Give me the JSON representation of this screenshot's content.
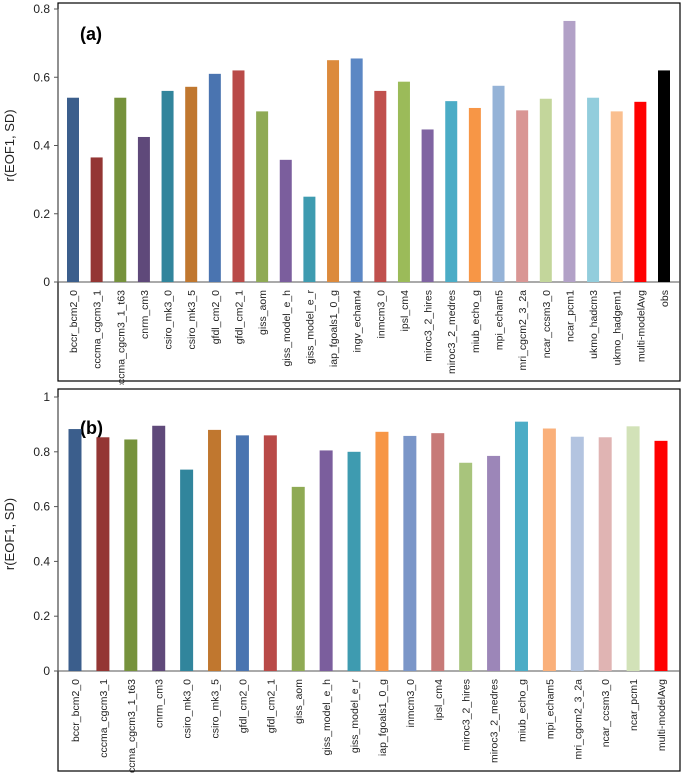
{
  "chart_data": [
    {
      "type": "bar",
      "panel_label": "(a)",
      "title": "",
      "xlabel": "",
      "ylabel": "r(EOF1, SD)",
      "ylim": [
        0,
        0.8
      ],
      "yticks": [
        0,
        0.2,
        0.4,
        0.6,
        0.8
      ],
      "ytick_labels": [
        "0",
        "0.2",
        "0.4",
        "0.6",
        "0.8"
      ],
      "grid": false,
      "categories": [
        "bccr_bcm2_0",
        "cccma_cgcm3_1",
        "cccma_cgcm3_1_t63",
        "cnrm_cm3",
        "csiro_mk3_0",
        "csiro_mk3_5",
        "gfdl_cm2_0",
        "gfdl_cm2_1",
        "giss_aom",
        "giss_model_e_h",
        "giss_model_e_r",
        "iap_fgoals1_0_g",
        "ingv_echam4",
        "inmcm3_0",
        "ipsl_cm4",
        "miroc3_2_hires",
        "miroc3_2_medres",
        "miub_echo_g",
        "mpi_echam5",
        "mri_cgcm2_3_2a",
        "ncar_ccsm3_0",
        "ncar_pcm1",
        "ukmo_hadcm3",
        "ukmo_hadgem1",
        "multi-modelAvg",
        "obs"
      ],
      "values": [
        0.54,
        0.365,
        0.54,
        0.425,
        0.56,
        0.572,
        0.61,
        0.62,
        0.5,
        0.358,
        0.25,
        0.65,
        0.655,
        0.56,
        0.587,
        0.447,
        0.53,
        0.51,
        0.575,
        0.503,
        0.537,
        0.765,
        0.54,
        0.5,
        0.528,
        0.62
      ],
      "colors": [
        "#3b5e8c",
        "#943634",
        "#76923c",
        "#5f497a",
        "#31859c",
        "#c0772f",
        "#4a74b0",
        "#b94a48",
        "#8faa54",
        "#7b5e9d",
        "#3e9bb0",
        "#dc8a3c",
        "#5b87c4",
        "#c0504d",
        "#9bbb59",
        "#8064a2",
        "#4bacc6",
        "#f79646",
        "#95b3d7",
        "#d99694",
        "#c3d69b",
        "#b2a1c7",
        "#92cddc",
        "#fabf8f",
        "#ff0000",
        "#000000"
      ]
    },
    {
      "type": "bar",
      "panel_label": "(b)",
      "title": "",
      "xlabel": "",
      "ylabel": "r(EOF1, SD)",
      "ylim": [
        0,
        1
      ],
      "yticks": [
        0,
        0.2,
        0.4,
        0.6,
        0.8,
        1
      ],
      "ytick_labels": [
        "0",
        "0.2",
        "0.4",
        "0.6",
        "0.8",
        "1"
      ],
      "grid": false,
      "categories": [
        "bccr_bcm2_0",
        "cccma_cgcm3_1",
        "cccma_cgcm3_1_t63",
        "cnrm_cm3",
        "csiro_mk3_0",
        "csiro_mk3_5",
        "gfdl_cm2_0",
        "gfdl_cm2_1",
        "giss_aom",
        "giss_model_e_h",
        "giss_model_e_r",
        "iap_fgoals1_0_g",
        "inmcm3_0",
        "ipsl_cm4",
        "miroc3_2_hires",
        "miroc3_2_medres",
        "miub_echo_g",
        "mpi_echam5",
        "mri_cgcm2_3_2a",
        "ncar_ccsm3_0",
        "ncar_pcm1",
        "multi-modelAvg"
      ],
      "values": [
        0.883,
        0.853,
        0.845,
        0.895,
        0.735,
        0.88,
        0.86,
        0.86,
        0.672,
        0.805,
        0.8,
        0.873,
        0.858,
        0.868,
        0.76,
        0.785,
        0.91,
        0.885,
        0.855,
        0.853,
        0.893,
        0.84
      ],
      "colors": [
        "#3b5e8c",
        "#943634",
        "#76923c",
        "#5f497a",
        "#31859c",
        "#c0772f",
        "#4a74b0",
        "#b94a48",
        "#8faa54",
        "#7b5e9d",
        "#3e9bb0",
        "#f79646",
        "#7b96c8",
        "#c77a78",
        "#a8c47c",
        "#9c86b8",
        "#4bacc6",
        "#fab07a",
        "#b3c4e0",
        "#e0b4b3",
        "#d2e2b8",
        "#ff0000"
      ]
    }
  ]
}
